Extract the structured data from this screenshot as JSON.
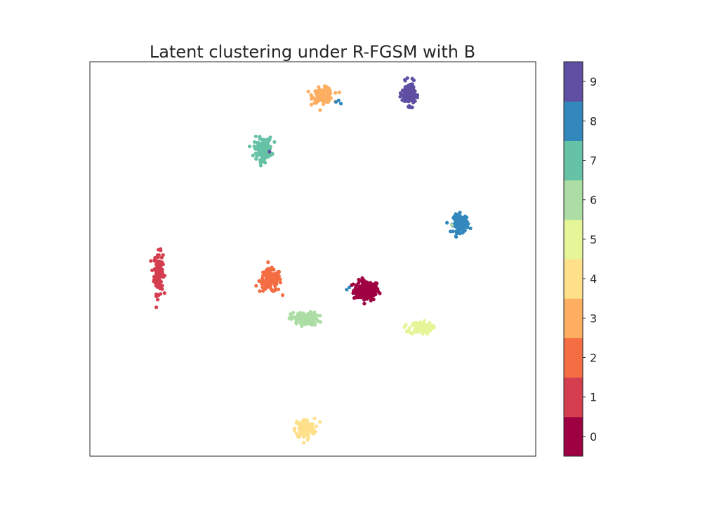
{
  "chart_data": {
    "type": "scatter",
    "title": "Latent clustering under R-FGSM with B",
    "xlabel": "",
    "ylabel": "",
    "axes_ticks_visible": false,
    "grid": false,
    "legend": "colorbar-right",
    "xlim": [
      0,
      100
    ],
    "ylim": [
      0,
      100
    ],
    "colorbar": {
      "ticks": [
        "0",
        "1",
        "2",
        "3",
        "4",
        "5",
        "6",
        "7",
        "8",
        "9"
      ],
      "colors": [
        "#9e0142",
        "#d53e4f",
        "#f46d43",
        "#fdae61",
        "#fee08b",
        "#e6f598",
        "#abdda4",
        "#66c2a5",
        "#3288bd",
        "#5e4fa2"
      ]
    },
    "clusters": [
      {
        "label": "0",
        "color": "#9e0142",
        "center": [
          62.0,
          42.0
        ],
        "spread": [
          2.6,
          2.3
        ],
        "count": 150
      },
      {
        "label": "1",
        "color": "#d53e4f",
        "center": [
          15.4,
          46.5
        ],
        "spread": [
          0.9,
          4.7
        ],
        "count": 140
      },
      {
        "label": "2",
        "color": "#f46d43",
        "center": [
          40.5,
          44.5
        ],
        "spread": [
          2.2,
          2.6
        ],
        "count": 140
      },
      {
        "label": "3",
        "color": "#fdae61",
        "center": [
          52.3,
          91.5
        ],
        "spread": [
          2.1,
          1.7
        ],
        "count": 120
      },
      {
        "label": "4",
        "color": "#fee08b",
        "center": [
          48.2,
          7.0
        ],
        "spread": [
          2.0,
          2.3
        ],
        "count": 120
      },
      {
        "label": "5",
        "color": "#e6f598",
        "center": [
          74.2,
          32.5
        ],
        "spread": [
          2.3,
          1.4
        ],
        "count": 110
      },
      {
        "label": "6",
        "color": "#abdda4",
        "center": [
          48.2,
          34.8
        ],
        "spread": [
          2.8,
          1.5
        ],
        "count": 130
      },
      {
        "label": "7",
        "color": "#66c2a5",
        "center": [
          38.8,
          78.0
        ],
        "spread": [
          1.8,
          2.5
        ],
        "count": 120
      },
      {
        "label": "8",
        "color": "#3288bd",
        "center": [
          83.2,
          59.0
        ],
        "spread": [
          1.5,
          2.1
        ],
        "count": 130
      },
      {
        "label": "9",
        "color": "#5e4fa2",
        "center": [
          71.5,
          92.0
        ],
        "spread": [
          1.3,
          2.6
        ],
        "count": 130
      }
    ],
    "outliers": [
      {
        "label": "8",
        "color": "#3288bd",
        "x": [
          55.2,
          56.3,
          55.8
        ],
        "y": [
          89.8,
          89.4,
          90.2
        ]
      },
      {
        "label": "9",
        "color": "#5e4fa2",
        "x": [
          40.3
        ],
        "y": [
          77.2
        ]
      },
      {
        "label": "8",
        "color": "#3288bd",
        "x": [
          57.6,
          58.2
        ],
        "y": [
          42.2,
          42.8
        ]
      },
      {
        "label": "4",
        "color": "#fee08b",
        "x": [
          51.6
        ],
        "y": [
          8.7
        ]
      },
      {
        "label": "6",
        "color": "#abdda4",
        "x": [
          81.2
        ],
        "y": [
          58.6
        ]
      }
    ]
  }
}
